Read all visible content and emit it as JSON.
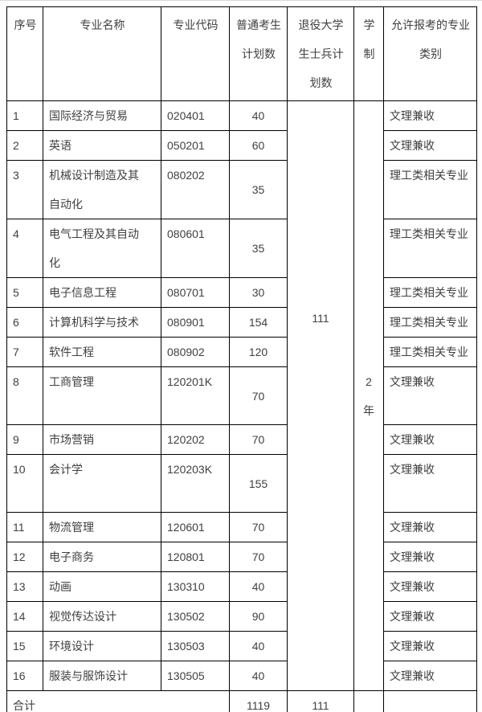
{
  "colors": {
    "background": "#ffffff",
    "table_border": "#000000",
    "text": "#404040",
    "top_hairline": "#d9d9d9"
  },
  "table": {
    "columns": [
      {
        "id": "index",
        "lines": [
          "序号"
        ]
      },
      {
        "id": "major-name",
        "lines": [
          "专业名称"
        ]
      },
      {
        "id": "major-code",
        "lines": [
          "专业代码"
        ]
      },
      {
        "id": "regular-plan",
        "lines": [
          "普通考生",
          "计划数"
        ]
      },
      {
        "id": "veteran-plan",
        "lines": [
          "退役大学",
          "生士兵计",
          "划数"
        ]
      },
      {
        "id": "duration",
        "lines": [
          "学",
          "制"
        ]
      },
      {
        "id": "allowed-categories",
        "lines": [
          "允许报考的专业",
          "类别"
        ]
      }
    ],
    "rows": [
      {
        "index": "1",
        "name_lines": [
          "国际经济与贸易"
        ],
        "code": "020401",
        "regular": "40",
        "categories": "文理兼收",
        "tall": false
      },
      {
        "index": "2",
        "name_lines": [
          "英语"
        ],
        "code": "050201",
        "regular": "60",
        "categories": "文理兼收",
        "tall": false
      },
      {
        "index": "3",
        "name_lines": [
          "机械设计制造及其",
          "自动化"
        ],
        "code": "080202",
        "regular": "35",
        "categories": "理工类相关专业",
        "tall": true
      },
      {
        "index": "4",
        "name_lines": [
          "电气工程及其自动",
          "化"
        ],
        "code": "080601",
        "regular": "35",
        "categories": "理工类相关专业",
        "tall": true
      },
      {
        "index": "5",
        "name_lines": [
          "电子信息工程"
        ],
        "code": "080701",
        "regular": "30",
        "categories": "理工类相关专业",
        "tall": false
      },
      {
        "index": "6",
        "name_lines": [
          "计算机科学与技术"
        ],
        "code": "080901",
        "regular": "154",
        "categories": "理工类相关专业",
        "tall": false
      },
      {
        "index": "7",
        "name_lines": [
          "软件工程"
        ],
        "code": "080902",
        "regular": "120",
        "categories": "理工类相关专业",
        "tall": false
      },
      {
        "index": "8",
        "name_lines": [
          "工商管理"
        ],
        "code": "120201K",
        "regular": "70",
        "categories": "文理兼收",
        "tall": true
      },
      {
        "index": "9",
        "name_lines": [
          "市场营销"
        ],
        "code": "120202",
        "regular": "70",
        "categories": "文理兼收",
        "tall": false
      },
      {
        "index": "10",
        "name_lines": [
          "会计学"
        ],
        "code": "120203K",
        "regular": "155",
        "categories": "文理兼收",
        "tall": true
      },
      {
        "index": "11",
        "name_lines": [
          "物流管理"
        ],
        "code": "120601",
        "regular": "70",
        "categories": "文理兼收",
        "tall": false
      },
      {
        "index": "12",
        "name_lines": [
          "电子商务"
        ],
        "code": "120801",
        "regular": "70",
        "categories": "文理兼收",
        "tall": false
      },
      {
        "index": "13",
        "name_lines": [
          "动画"
        ],
        "code": "130310",
        "regular": "40",
        "categories": "文理兼收",
        "tall": false
      },
      {
        "index": "14",
        "name_lines": [
          "视觉传达设计"
        ],
        "code": "130502",
        "regular": "90",
        "categories": "文理兼收",
        "tall": false
      },
      {
        "index": "15",
        "name_lines": [
          "环境设计"
        ],
        "code": "130503",
        "regular": "40",
        "categories": "文理兼收",
        "tall": false
      },
      {
        "index": "16",
        "name_lines": [
          "服装与服饰设计"
        ],
        "code": "130505",
        "regular": "40",
        "categories": "文理兼收",
        "tall": false
      }
    ],
    "merged": {
      "veteran_plan": "111",
      "duration_lines": [
        "2",
        "年"
      ]
    },
    "total": {
      "label": "合计",
      "regular": "1119",
      "veteran": "111"
    }
  }
}
